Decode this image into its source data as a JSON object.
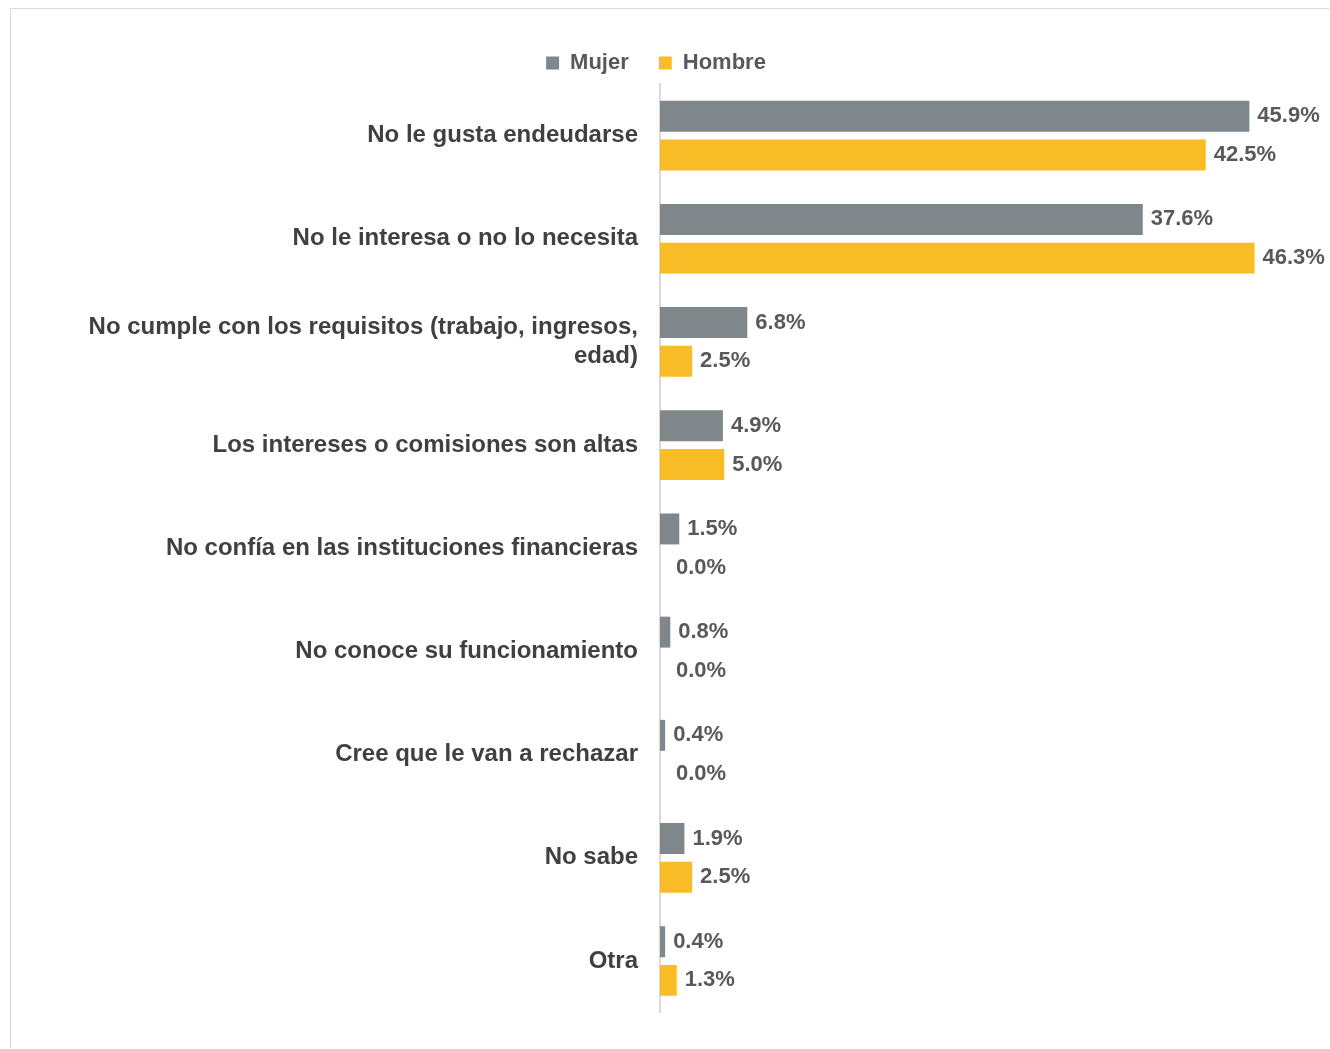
{
  "chart_data": {
    "type": "bar",
    "orientation": "horizontal",
    "categories": [
      "No le gusta endeudarse",
      "No le interesa o no lo necesita",
      "No cumple con los requisitos (trabajo, ingresos, edad)",
      "Los intereses o comisiones son altas",
      "No confía en las instituciones financieras",
      "No conoce su funcionamiento",
      "Cree que le van a rechazar",
      "No sabe",
      "Otra"
    ],
    "series": [
      {
        "name": "Mujer",
        "color": "#7f878b",
        "values": [
          45.9,
          37.6,
          6.8,
          4.9,
          1.5,
          0.8,
          0.4,
          1.9,
          0.4
        ],
        "value_labels": [
          "45.9%",
          "37.6%",
          "6.8%",
          "4.9%",
          "1.5%",
          "0.8%",
          "0.4%",
          "1.9%",
          "0.4%"
        ]
      },
      {
        "name": "Hombre",
        "color": "#f8bc27",
        "values": [
          42.5,
          46.3,
          2.5,
          5.0,
          0.0,
          0.0,
          0.0,
          2.5,
          1.3
        ],
        "value_labels": [
          "42.5%",
          "46.3%",
          "2.5%",
          "5.0%",
          "0.0%",
          "0.0%",
          "0.0%",
          "2.5%",
          "1.3%"
        ]
      }
    ],
    "legend": "top"
  }
}
